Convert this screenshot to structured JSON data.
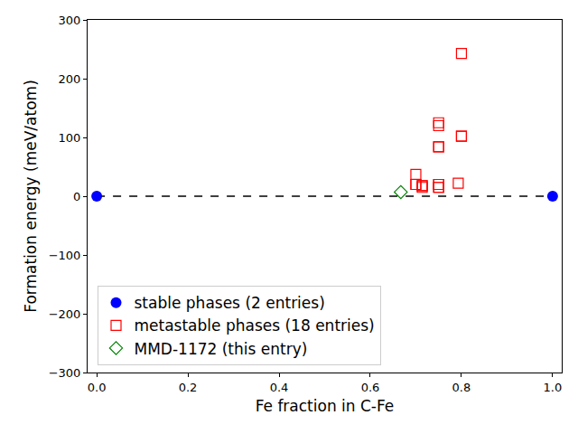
{
  "chart_data": {
    "type": "scatter",
    "x_label": "Fe fraction in C-Fe",
    "y_label": "Formation energy (meV/atom)",
    "xlim": [
      -0.02,
      1.02
    ],
    "xticks": [
      {
        "value": 0,
        "label": "0.0"
      },
      {
        "value": 0.2,
        "label": "0.2"
      },
      {
        "value": 0.4,
        "label": "0.4"
      },
      {
        "value": 0.6,
        "label": "0.6"
      },
      {
        "value": 0.8,
        "label": "0.8"
      },
      {
        "value": 1,
        "label": "1.0"
      }
    ],
    "ylim": [
      -300,
      300
    ],
    "yticks": [
      {
        "value": -300,
        "label": "−300"
      },
      {
        "value": -200,
        "label": "−200"
      },
      {
        "value": -100,
        "label": "−100"
      },
      0,
      100,
      200,
      300
    ],
    "grid": false,
    "legend": "lower left",
    "series": [
      {
        "type": "line",
        "color": "black",
        "line_style": "dashed",
        "x": [
          0,
          1
        ],
        "values": [
          0,
          0
        ]
      },
      {
        "name": "stable phases (2 entries)",
        "color": "blue",
        "marker": "circle",
        "x": [
          0,
          1
        ],
        "values": [
          0,
          0
        ]
      },
      {
        "name": "metastable phases (18 entries)",
        "color": "red",
        "marker": "square-open",
        "x": [
          0.7,
          0.7,
          0.7,
          0.714,
          0.714,
          0.714,
          0.75,
          0.75,
          0.75,
          0.75,
          0.75,
          0.75,
          0.75,
          0.793,
          0.8,
          0.8,
          0.8,
          0.75
        ],
        "values": [
          37,
          20,
          20,
          18,
          18,
          15,
          125,
          120,
          84,
          84,
          20,
          15,
          20,
          22,
          243,
          102,
          102,
          15
        ]
      },
      {
        "name": "MMD-1172 (this entry)",
        "color": "green",
        "marker": "diamond-open",
        "x": [
          0.667
        ],
        "values": [
          7
        ]
      }
    ]
  }
}
